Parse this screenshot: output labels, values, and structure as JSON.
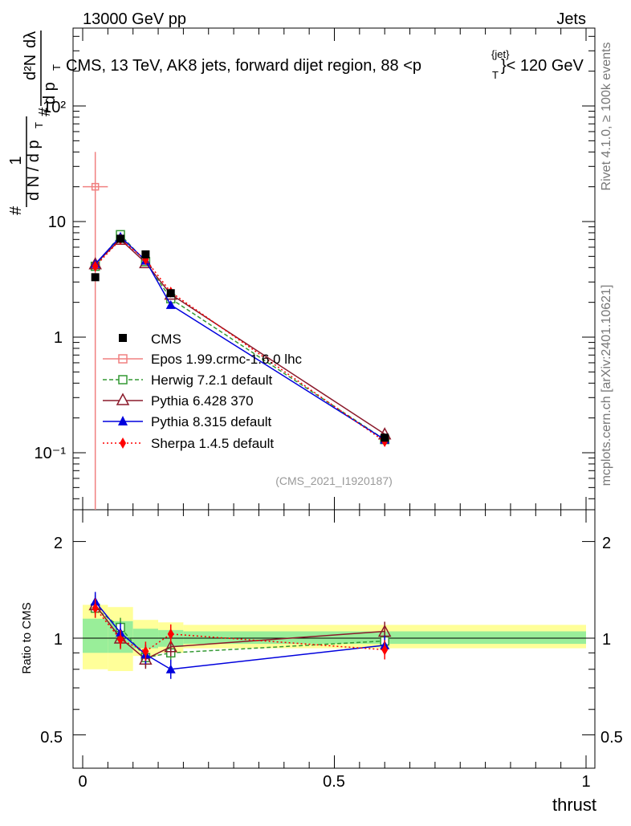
{
  "header": {
    "energy_label": "13000 GeV pp",
    "category_label": "Jets"
  },
  "right_labels": {
    "rivet": "Rivet 4.1.0, ≥ 100k events",
    "mcplots": "mcplots.cern.ch [arXiv:2401.10621]"
  },
  "main_plot": {
    "title": "CMS, 13 TeV, AK8 jets, forward dijet region, 88 <p",
    "title_sup": "{jet}",
    "title_sub": "T",
    "title_end": "}< 120 GeV",
    "ylabel_num_hash": "#",
    "ylabel_num_one": "1",
    "ylabel_den": "d N / d p",
    "ylabel_den_sub": "T",
    "ylabel_rhs_hash": "#",
    "ylabel_rhs_num": "d²N",
    "ylabel_rhs_den": "d p",
    "ylabel_rhs_den_sub": "T",
    "ylabel_rhs_end": "dλ",
    "ytick_labels": [
      "10⁻¹",
      "1",
      "10",
      "10²"
    ],
    "analysis_id": "(CMS_2021_I1920187)"
  },
  "ratio_plot": {
    "ylabel": "Ratio to CMS",
    "ytick_labels": [
      "0.5",
      "1",
      "2"
    ],
    "ytick_labels_right": [
      "0.5",
      "1",
      "2"
    ]
  },
  "x_axis": {
    "label": "thrust",
    "tick_labels": [
      "0",
      "0.5",
      "1"
    ]
  },
  "legend": [
    {
      "key": "cms",
      "label": "CMS",
      "color": "#000000"
    },
    {
      "key": "epos",
      "label": "Epos 1.99.crmc-1.6.0 lhc",
      "color": "#f08080"
    },
    {
      "key": "herwig",
      "label": "Herwig 7.2.1 default",
      "color": "#339933"
    },
    {
      "key": "pythia6",
      "label": "Pythia 6.428 370",
      "color": "#8b1a2b"
    },
    {
      "key": "pythia8",
      "label": "Pythia 8.315 default",
      "color": "#0000dd"
    },
    {
      "key": "sherpa",
      "label": "Sherpa 1.4.5 default",
      "color": "#ff0000"
    }
  ],
  "chart_data": [
    {
      "type": "line",
      "title": "CMS, 13 TeV, AK8 jets, forward dijet region, 88 < p_T^{jet} < 120 GeV",
      "xlabel": "thrust",
      "ylabel": "(1/dN/dp_T) d²N/(dp_T dλ)",
      "yscale": "log",
      "xlim": [
        -0.02,
        1.0
      ],
      "ylim": [
        0.03,
        500
      ],
      "bins": [
        [
          0.0,
          0.05
        ],
        [
          0.05,
          0.1
        ],
        [
          0.1,
          0.15
        ],
        [
          0.15,
          0.2
        ],
        [
          0.2,
          1.0
        ]
      ],
      "data": {
        "name": "CMS",
        "x": [
          0.025,
          0.075,
          0.125,
          0.175,
          0.6
        ],
        "y": [
          3.3,
          7.1,
          5.2,
          2.4,
          0.135
        ]
      },
      "series": [
        {
          "name": "Epos 1.99.crmc-1.6.0 lhc",
          "x": [
            0.025
          ],
          "y": [
            20.0
          ],
          "yerr": [
            [
              0.0,
              40.0
            ]
          ]
        },
        {
          "name": "Herwig 7.2.1 default",
          "x": [
            0.025,
            0.075,
            0.125,
            0.175,
            0.6
          ],
          "y": [
            4.1,
            7.7,
            4.5,
            2.15,
            0.13
          ]
        },
        {
          "name": "Pythia 6.428 370",
          "x": [
            0.025,
            0.075,
            0.125,
            0.175,
            0.6
          ],
          "y": [
            4.3,
            7.0,
            4.4,
            2.35,
            0.145
          ]
        },
        {
          "name": "Pythia 8.315 default",
          "x": [
            0.025,
            0.075,
            0.125,
            0.175,
            0.6
          ],
          "y": [
            4.3,
            7.4,
            4.6,
            1.9,
            0.13
          ]
        },
        {
          "name": "Sherpa 1.4.5 default",
          "x": [
            0.025,
            0.075,
            0.125,
            0.175,
            0.6
          ],
          "y": [
            4.1,
            7.0,
            4.7,
            2.45,
            0.125
          ]
        }
      ]
    },
    {
      "type": "line",
      "title": "",
      "xlabel": "thrust",
      "ylabel": "Ratio to CMS",
      "yscale": "log",
      "ylim": [
        0.4,
        2.5
      ],
      "uncertainty_bands": {
        "bins": [
          [
            0.0,
            0.05
          ],
          [
            0.05,
            0.1
          ],
          [
            0.1,
            0.15
          ],
          [
            0.15,
            0.2
          ],
          [
            0.2,
            1.0
          ]
        ],
        "inner": [
          [
            0.9,
            1.15
          ],
          [
            0.9,
            1.13
          ],
          [
            0.93,
            1.07
          ],
          [
            0.94,
            1.06
          ],
          [
            0.96,
            1.05
          ]
        ],
        "outer": [
          [
            0.8,
            1.27
          ],
          [
            0.79,
            1.25
          ],
          [
            0.88,
            1.14
          ],
          [
            0.9,
            1.12
          ],
          [
            0.93,
            1.1
          ]
        ]
      },
      "series": [
        {
          "name": "Herwig 7.2.1 default",
          "x": [
            0.025,
            0.075,
            0.125,
            0.175,
            0.6
          ],
          "y": [
            1.24,
            1.08,
            0.87,
            0.9,
            0.98
          ]
        },
        {
          "name": "Pythia 6.428 370",
          "x": [
            0.025,
            0.075,
            0.125,
            0.175,
            0.6
          ],
          "y": [
            1.27,
            1.0,
            0.86,
            0.94,
            1.05
          ]
        },
        {
          "name": "Pythia 8.315 default",
          "x": [
            0.025,
            0.075,
            0.125,
            0.175,
            0.6
          ],
          "y": [
            1.3,
            1.04,
            0.89,
            0.8,
            0.95
          ]
        },
        {
          "name": "Sherpa 1.4.5 default",
          "x": [
            0.025,
            0.075,
            0.125,
            0.175,
            0.6
          ],
          "y": [
            1.24,
            0.99,
            0.91,
            1.03,
            0.92
          ]
        }
      ]
    }
  ]
}
